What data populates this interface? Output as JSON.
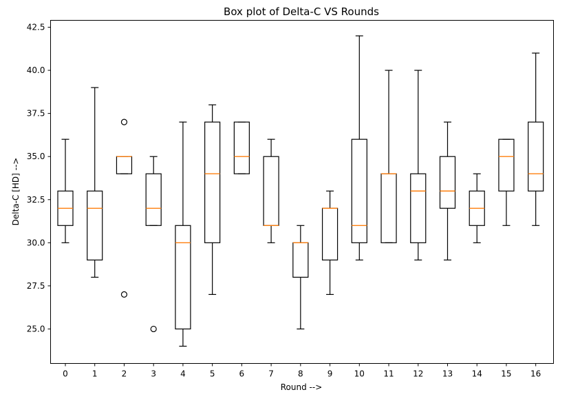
{
  "chart_data": {
    "type": "boxplot",
    "title": "Box plot of Delta-C VS Rounds",
    "xlabel": "Round -->",
    "ylabel": "Delta-C [HD] -->",
    "ylim": [
      23.0,
      42.9
    ],
    "yticks": [
      25.0,
      27.5,
      30.0,
      32.5,
      35.0,
      37.5,
      40.0,
      42.5
    ],
    "ytick_labels": [
      "25.0",
      "27.5",
      "30.0",
      "32.5",
      "35.0",
      "37.5",
      "40.0",
      "42.5"
    ],
    "categories": [
      "0",
      "1",
      "2",
      "3",
      "4",
      "5",
      "6",
      "7",
      "8",
      "9",
      "10",
      "11",
      "12",
      "13",
      "14",
      "15",
      "16"
    ],
    "colors": {
      "box": "#000000",
      "median": "#ff7f0e"
    },
    "boxes": [
      {
        "x": "0",
        "whislo": 30,
        "q1": 31,
        "med": 32,
        "q3": 33,
        "whishi": 36,
        "fliers": []
      },
      {
        "x": "1",
        "whislo": 28,
        "q1": 29,
        "med": 32,
        "q3": 33,
        "whishi": 39,
        "fliers": []
      },
      {
        "x": "2",
        "whislo": 34,
        "q1": 34,
        "med": 35,
        "q3": 35,
        "whishi": 35,
        "fliers": [
          27,
          37
        ]
      },
      {
        "x": "3",
        "whislo": 31,
        "q1": 31,
        "med": 32,
        "q3": 34,
        "whishi": 35,
        "fliers": [
          25
        ]
      },
      {
        "x": "4",
        "whislo": 24,
        "q1": 25,
        "med": 30,
        "q3": 31,
        "whishi": 37,
        "fliers": []
      },
      {
        "x": "5",
        "whislo": 27,
        "q1": 30,
        "med": 34,
        "q3": 37,
        "whishi": 38,
        "fliers": []
      },
      {
        "x": "6",
        "whislo": 34,
        "q1": 34,
        "med": 35,
        "q3": 37,
        "whishi": 37,
        "fliers": []
      },
      {
        "x": "7",
        "whislo": 30,
        "q1": 31,
        "med": 31,
        "q3": 35,
        "whishi": 36,
        "fliers": []
      },
      {
        "x": "8",
        "whislo": 25,
        "q1": 28,
        "med": 30,
        "q3": 30,
        "whishi": 31,
        "fliers": []
      },
      {
        "x": "9",
        "whislo": 27,
        "q1": 29,
        "med": 32,
        "q3": 32,
        "whishi": 33,
        "fliers": []
      },
      {
        "x": "10",
        "whislo": 29,
        "q1": 30,
        "med": 31,
        "q3": 36,
        "whishi": 42,
        "fliers": []
      },
      {
        "x": "11",
        "whislo": 30,
        "q1": 30,
        "med": 34,
        "q3": 34,
        "whishi": 40,
        "fliers": []
      },
      {
        "x": "12",
        "whislo": 29,
        "q1": 30,
        "med": 33,
        "q3": 34,
        "whishi": 40,
        "fliers": []
      },
      {
        "x": "13",
        "whislo": 29,
        "q1": 32,
        "med": 33,
        "q3": 35,
        "whishi": 37,
        "fliers": []
      },
      {
        "x": "14",
        "whislo": 30,
        "q1": 31,
        "med": 32,
        "q3": 33,
        "whishi": 34,
        "fliers": []
      },
      {
        "x": "15",
        "whislo": 31,
        "q1": 33,
        "med": 35,
        "q3": 36,
        "whishi": 36,
        "fliers": []
      },
      {
        "x": "16",
        "whislo": 31,
        "q1": 33,
        "med": 34,
        "q3": 37,
        "whishi": 41,
        "fliers": []
      }
    ]
  }
}
